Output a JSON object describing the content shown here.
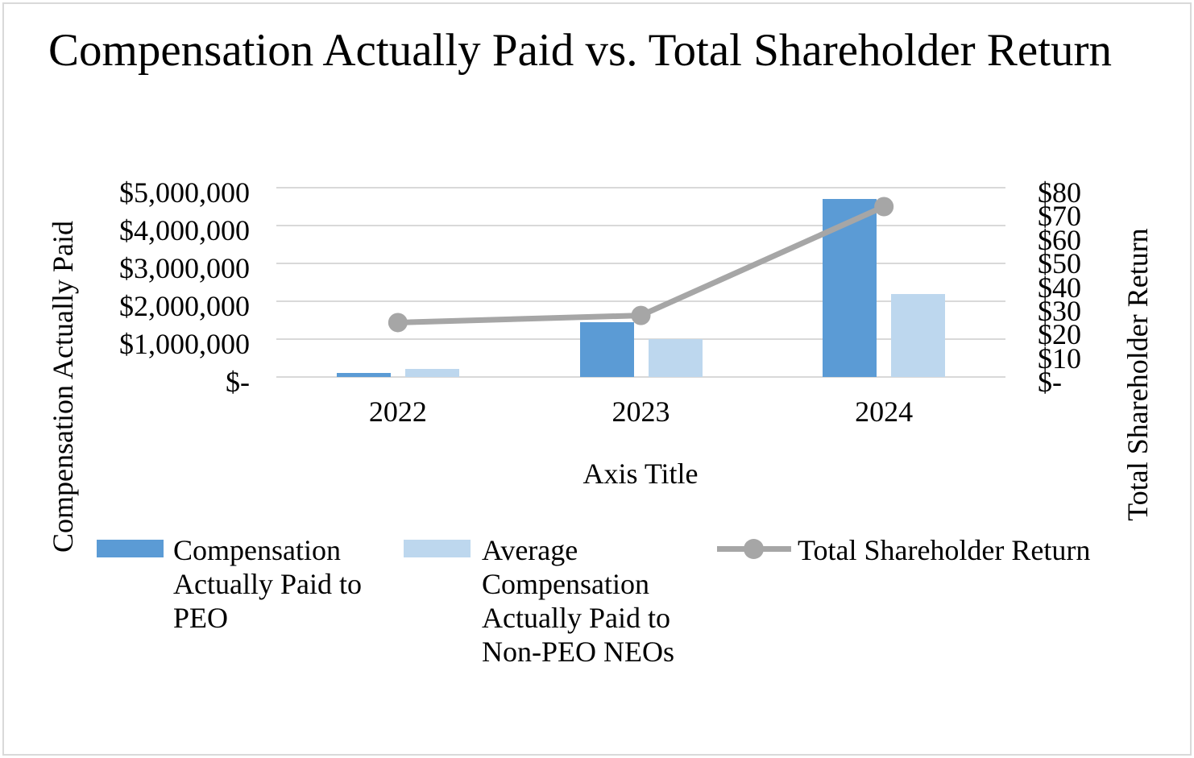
{
  "chart_data": {
    "type": "combo bar+line",
    "title": "Compensation Actually Paid vs. Total Shareholder Return",
    "categories": [
      "2022",
      "2023",
      "2024"
    ],
    "series": [
      {
        "name": "Compensation Actually Paid to PEO",
        "type": "bar",
        "axis": "left",
        "color": "#5b9bd5",
        "values": [
          100000,
          1450000,
          4700000
        ]
      },
      {
        "name": "Average Compensation Actually Paid to Non-PEO NEOs",
        "type": "bar",
        "axis": "left",
        "color": "#bdd7ee",
        "values": [
          220000,
          1000000,
          2200000
        ]
      },
      {
        "name": "Total Shareholder Return",
        "type": "line",
        "axis": "right",
        "color": "#a6a6a6",
        "values": [
          23,
          26,
          72
        ]
      }
    ],
    "left_axis": {
      "title": "Compensation Actually Paid",
      "min": 0,
      "max": 5000000,
      "ticks": [
        "$5,000,000",
        "$4,000,000",
        "$3,000,000",
        "$2,000,000",
        "$1,000,000",
        "$-"
      ]
    },
    "right_axis": {
      "title": "Total Shareholder Return",
      "min": 0,
      "max": 80,
      "ticks": [
        "$80",
        "$70",
        "$60",
        "$50",
        "$40",
        "$30",
        "$20",
        "$10",
        "$-"
      ]
    },
    "x_axis": {
      "title": "Axis Title",
      "labels": [
        "2022",
        "2023",
        "2024"
      ]
    },
    "style": {
      "gridline_color": "#d9d9d9",
      "frame_border_color": "#d9d9d9",
      "line_stroke_width": 7,
      "marker_radius": 12,
      "legend_position": "bottom",
      "grid": "horizontal-on"
    }
  }
}
